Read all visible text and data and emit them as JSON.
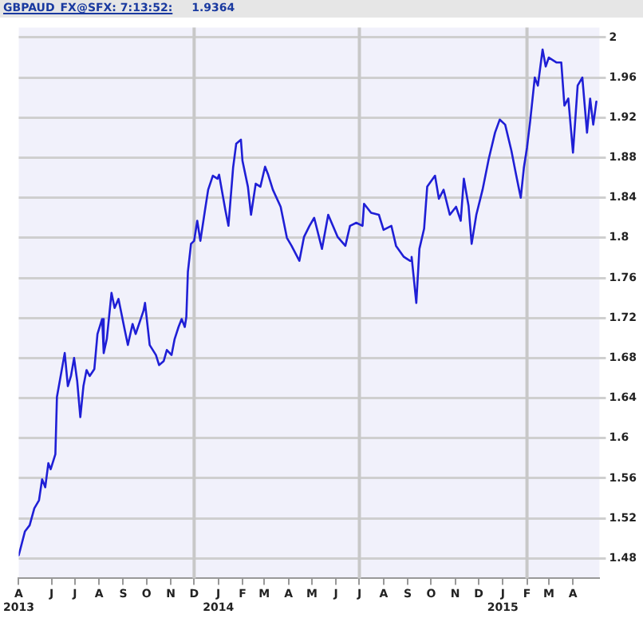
{
  "chart_data": {
    "type": "line",
    "title": "GBPAUD_FX@SFX: 7:13:52:",
    "subtitle": "1.9364",
    "x": [
      "2013-04-20",
      "2013-04-28",
      "2013-05-04",
      "2013-05-10",
      "2013-05-16",
      "2013-05-20",
      "2013-05-24",
      "2013-05-28",
      "2013-05-31",
      "2013-06-06",
      "2013-06-08",
      "2013-06-18",
      "2013-06-22",
      "2013-06-26",
      "2013-06-30",
      "2013-07-04",
      "2013-07-08",
      "2013-07-12",
      "2013-07-16",
      "2013-07-20",
      "2013-07-26",
      "2013-07-30",
      "2013-08-05",
      "2013-08-07",
      "2013-08-11",
      "2013-08-17",
      "2013-08-21",
      "2013-08-26",
      "2013-09-03",
      "2013-09-07",
      "2013-09-13",
      "2013-09-17",
      "2013-09-27",
      "2013-09-29",
      "2013-10-05",
      "2013-10-13",
      "2013-10-17",
      "2013-10-23",
      "2013-10-27",
      "2013-11-02",
      "2013-11-06",
      "2013-11-11",
      "2013-11-15",
      "2013-11-19",
      "2013-11-21",
      "2013-11-23",
      "2013-11-27",
      "2013-12-01",
      "2013-12-05",
      "2013-12-09",
      "2013-12-15",
      "2013-12-19",
      "2013-12-25",
      "2013-12-31",
      "2014-01-02",
      "2014-01-10",
      "2014-01-14",
      "2014-01-20",
      "2014-01-24",
      "2014-01-30",
      "2014-02-01",
      "2014-02-08",
      "2014-02-12",
      "2014-02-18",
      "2014-02-24",
      "2014-03-02",
      "2014-03-06",
      "2014-03-12",
      "2014-03-22",
      "2014-03-30",
      "2014-04-05",
      "2014-04-15",
      "2014-04-21",
      "2014-04-28",
      "2014-05-04",
      "2014-05-14",
      "2014-05-22",
      "2014-05-28",
      "2014-06-03",
      "2014-06-13",
      "2014-06-19",
      "2014-06-27",
      "2014-07-05",
      "2014-07-07",
      "2014-07-16",
      "2014-07-26",
      "2014-08-01",
      "2014-08-11",
      "2014-08-17",
      "2014-08-27",
      "2014-09-04",
      "2014-09-06",
      "2014-09-12",
      "2014-09-16",
      "2014-09-22",
      "2014-09-26",
      "2014-10-06",
      "2014-10-11",
      "2014-10-17",
      "2014-10-25",
      "2014-11-02",
      "2014-11-08",
      "2014-11-12",
      "2014-11-18",
      "2014-11-22",
      "2014-11-28",
      "2014-12-06",
      "2014-12-14",
      "2014-12-22",
      "2014-12-28",
      "2015-01-04",
      "2015-01-12",
      "2015-01-18",
      "2015-01-24",
      "2015-01-28",
      "2015-02-01",
      "2015-02-05",
      "2015-02-11",
      "2015-02-15",
      "2015-02-21",
      "2015-02-25",
      "2015-03-01",
      "2015-03-11",
      "2015-03-17",
      "2015-03-21",
      "2015-03-26",
      "2015-04-01",
      "2015-04-07",
      "2015-04-13",
      "2015-04-19",
      "2015-04-23",
      "2015-04-27",
      "2015-05-01"
    ],
    "series": [
      {
        "color": "#1f1fd6",
        "values": [
          1.483,
          1.507,
          1.513,
          1.53,
          1.538,
          1.559,
          1.551,
          1.575,
          1.569,
          1.584,
          1.641,
          1.685,
          1.652,
          1.662,
          1.68,
          1.657,
          1.621,
          1.652,
          1.668,
          1.662,
          1.669,
          1.704,
          1.719,
          1.685,
          1.699,
          1.745,
          1.73,
          1.739,
          1.708,
          1.693,
          1.714,
          1.704,
          1.727,
          1.735,
          1.693,
          1.683,
          1.673,
          1.677,
          1.688,
          1.683,
          1.699,
          1.711,
          1.719,
          1.711,
          1.721,
          1.766,
          1.794,
          1.797,
          1.817,
          1.797,
          1.828,
          1.848,
          1.862,
          1.859,
          1.863,
          1.828,
          1.812,
          1.87,
          1.894,
          1.898,
          1.877,
          1.851,
          1.823,
          1.854,
          1.851,
          1.871,
          1.863,
          1.848,
          1.831,
          1.8,
          1.792,
          1.777,
          1.801,
          1.812,
          1.82,
          1.789,
          1.823,
          1.812,
          1.801,
          1.792,
          1.812,
          1.815,
          1.812,
          1.834,
          1.825,
          1.823,
          1.808,
          1.812,
          1.792,
          1.781,
          1.777,
          1.781,
          1.735,
          1.789,
          1.809,
          1.851,
          1.862,
          1.839,
          1.848,
          1.823,
          1.831,
          1.817,
          1.859,
          1.832,
          1.794,
          1.823,
          1.848,
          1.879,
          1.905,
          1.918,
          1.913,
          1.887,
          1.863,
          1.84,
          1.87,
          1.89,
          1.916,
          1.96,
          1.952,
          1.988,
          1.971,
          1.98,
          1.975,
          1.975,
          1.932,
          1.939,
          1.885,
          1.952,
          1.96,
          1.905,
          1.939,
          1.913,
          1.936
        ]
      }
    ],
    "xlim": [
      "2013-04-20",
      "2015-05-05"
    ],
    "xticks": [
      {
        "value": "2013-04-20",
        "label": "A\n2013"
      },
      {
        "value": "2013-06-01",
        "label": "J"
      },
      {
        "value": "2013-07-01",
        "label": "J"
      },
      {
        "value": "2013-08-01",
        "label": "A"
      },
      {
        "value": "2013-09-01",
        "label": "S"
      },
      {
        "value": "2013-10-01",
        "label": "O"
      },
      {
        "value": "2013-11-01",
        "label": "N"
      },
      {
        "value": "2013-12-01",
        "label": "D"
      },
      {
        "value": "2014-01-01",
        "label": "J\n2014"
      },
      {
        "value": "2014-02-01",
        "label": "F"
      },
      {
        "value": "2014-03-01",
        "label": "M"
      },
      {
        "value": "2014-04-01",
        "label": "A"
      },
      {
        "value": "2014-05-01",
        "label": "M"
      },
      {
        "value": "2014-06-01",
        "label": "J"
      },
      {
        "value": "2014-07-01",
        "label": "J"
      },
      {
        "value": "2014-08-01",
        "label": "A"
      },
      {
        "value": "2014-09-01",
        "label": "S"
      },
      {
        "value": "2014-10-01",
        "label": "O"
      },
      {
        "value": "2014-11-01",
        "label": "N"
      },
      {
        "value": "2014-12-01",
        "label": "D"
      },
      {
        "value": "2015-01-01",
        "label": "J\n2015"
      },
      {
        "value": "2015-02-01",
        "label": "F"
      },
      {
        "value": "2015-03-01",
        "label": "M"
      },
      {
        "value": "2015-04-01",
        "label": "A"
      }
    ],
    "ylim": [
      1.46,
      2.01
    ],
    "yticks": [
      1.48,
      1.52,
      1.56,
      1.6,
      1.64,
      1.68,
      1.72,
      1.76,
      1.8,
      1.84,
      1.88,
      1.92,
      1.96,
      2
    ],
    "ref_lines": [
      {
        "axis": "x",
        "value": "2013-12-01",
        "color": "#c8c8c8"
      },
      {
        "axis": "x",
        "value": "2014-07-01",
        "color": "#c8c8c8"
      },
      {
        "axis": "x",
        "value": "2015-02-01",
        "color": "#c8c8c8"
      }
    ],
    "grid": "y",
    "legend": false,
    "marker": "none",
    "line_style": "solid"
  }
}
